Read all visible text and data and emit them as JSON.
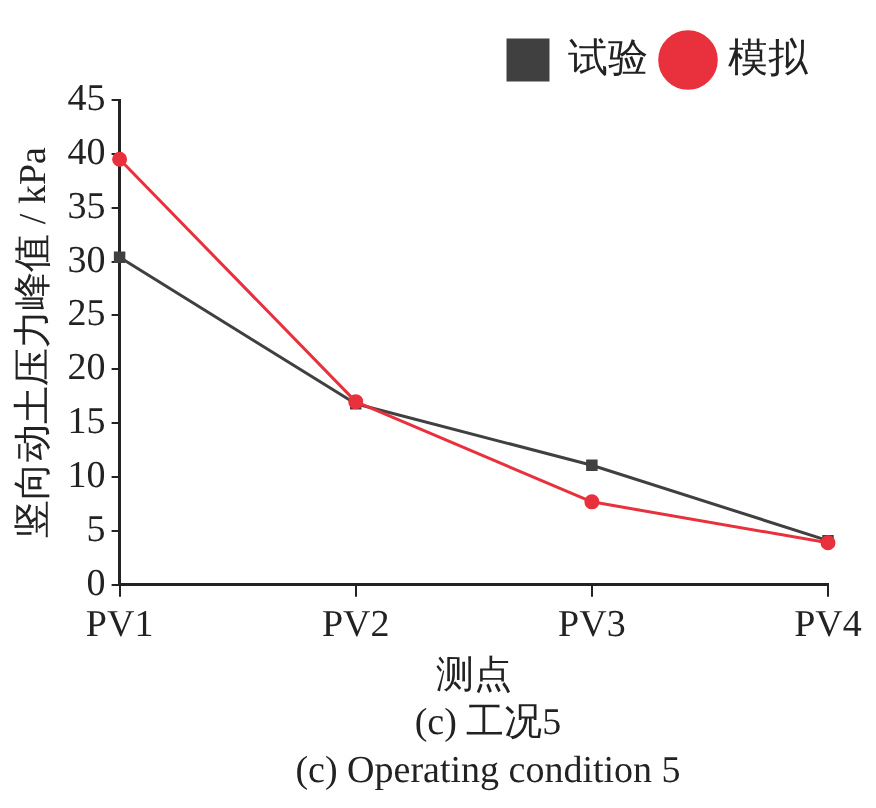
{
  "chart_data": {
    "type": "line",
    "xlabel": "测点",
    "ylabel": "竖向动土压力峰值 / kPa",
    "annotations": [
      "(c) 工况5",
      "(c) Operating condition 5"
    ],
    "categories": [
      "PV1",
      "PV2",
      "PV3",
      "PV4"
    ],
    "series": [
      {
        "name": "试验",
        "color": "#404040",
        "marker": "square",
        "values": [
          30.4,
          16.8,
          11.1,
          4.1
        ]
      },
      {
        "name": "模拟",
        "color": "#e8313c",
        "marker": "circle",
        "values": [
          39.5,
          17.0,
          7.7,
          3.9
        ]
      }
    ],
    "ylim": [
      0,
      45
    ],
    "yticks": [
      0,
      5,
      10,
      15,
      20,
      25,
      30,
      35,
      40,
      45
    ],
    "grid": false,
    "legend": "top right"
  }
}
